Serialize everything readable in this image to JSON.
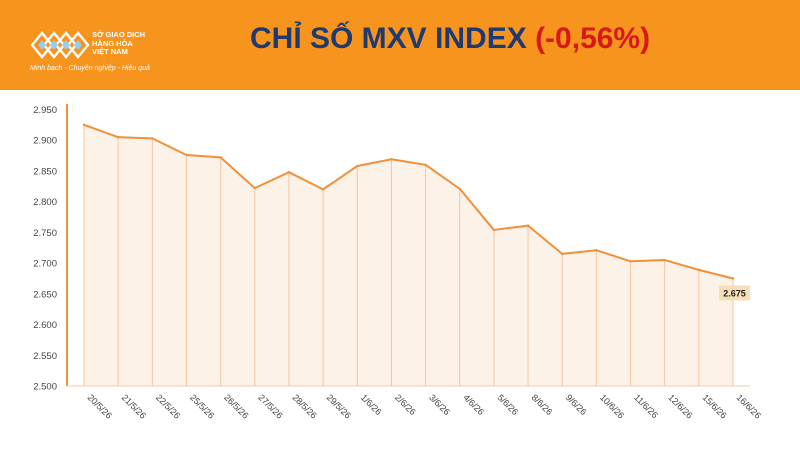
{
  "header": {
    "org_lines": [
      "SỞ GIAO DỊCH",
      "HÀNG HÓA",
      "VIỆT NAM"
    ],
    "slogan": "Minh bạch - Chuyên nghiệp - Hiệu quả",
    "title_main": "CHỈ SỐ MXV INDEX",
    "title_change": "(-0,56%)"
  },
  "colors": {
    "header_bg": "#f7941d",
    "line": "#f0913a",
    "fill": "#fbe3cc",
    "title_main": "#1e3a70",
    "title_change": "#d7191c",
    "last_label_bg": "#f6dfb8"
  },
  "chart_data": {
    "type": "line",
    "categories": [
      "20/5/26",
      "21/5/26",
      "22/5/26",
      "25/5/26",
      "26/5/26",
      "27/5/26",
      "28/5/26",
      "29/5/26",
      "1/6/26",
      "2/6/26",
      "3/6/26",
      "4/6/26",
      "5/6/26",
      "8/6/26",
      "9/6/26",
      "10/6/26",
      "11/6/26",
      "12/6/26",
      "15/6/26",
      "16/6/26"
    ],
    "values": [
      2925,
      2905,
      2903,
      2876,
      2872,
      2822,
      2848,
      2820,
      2858,
      2869,
      2860,
      2821,
      2754,
      2761,
      2715,
      2721,
      2703,
      2705,
      2689,
      2675
    ],
    "yticks": [
      "2.500",
      "2.550",
      "2.600",
      "2.650",
      "2.700",
      "2.750",
      "2.800",
      "2.850",
      "2.900",
      "2.950"
    ],
    "ylim": [
      2500,
      2950
    ],
    "last_value_label": "2.675",
    "grid": false
  }
}
